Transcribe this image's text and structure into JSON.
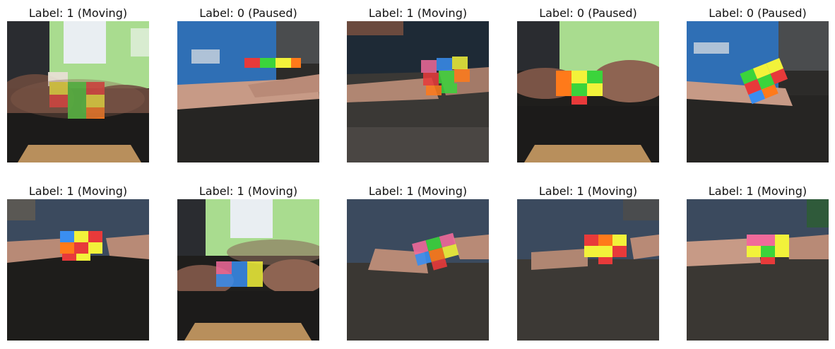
{
  "panels": [
    {
      "label": "Label: 1 (Moving)",
      "scene": "monitor-view",
      "state": "moving"
    },
    {
      "label": "Label: 0 (Paused)",
      "scene": "blue-shirt-side",
      "state": "paused"
    },
    {
      "label": "Label: 1 (Moving)",
      "scene": "close-side",
      "state": "moving"
    },
    {
      "label": "Label: 0 (Paused)",
      "scene": "monitor-side",
      "state": "paused"
    },
    {
      "label": "Label: 0 (Paused)",
      "scene": "blue-shirt-tilt",
      "state": "paused"
    },
    {
      "label": "Label: 1 (Moving)",
      "scene": "navy-shirt-front",
      "state": "moving"
    },
    {
      "label": "Label: 1 (Moving)",
      "scene": "monitor-view-2",
      "state": "moving"
    },
    {
      "label": "Label: 1 (Moving)",
      "scene": "navy-shirt-close",
      "state": "moving"
    },
    {
      "label": "Label: 1 (Moving)",
      "scene": "navy-shirt-right",
      "state": "moving"
    },
    {
      "label": "Label: 1 (Moving)",
      "scene": "navy-shirt-far-right",
      "state": "moving"
    }
  ],
  "colors": {
    "table": "#1f1e1c",
    "wood": "#b88f5c",
    "navy_shirt": "#3b4a5e",
    "blue_shirt": "#2f6fb5",
    "skin": "#c79a86",
    "monitor_green": "#b8e6a0",
    "cube_red": "#e83a3a",
    "cube_green": "#3bd43b",
    "cube_yellow": "#f2f23a",
    "cube_orange": "#ff7a1a",
    "cube_blue": "#3a8ef0",
    "cube_pink": "#f06a9a"
  }
}
